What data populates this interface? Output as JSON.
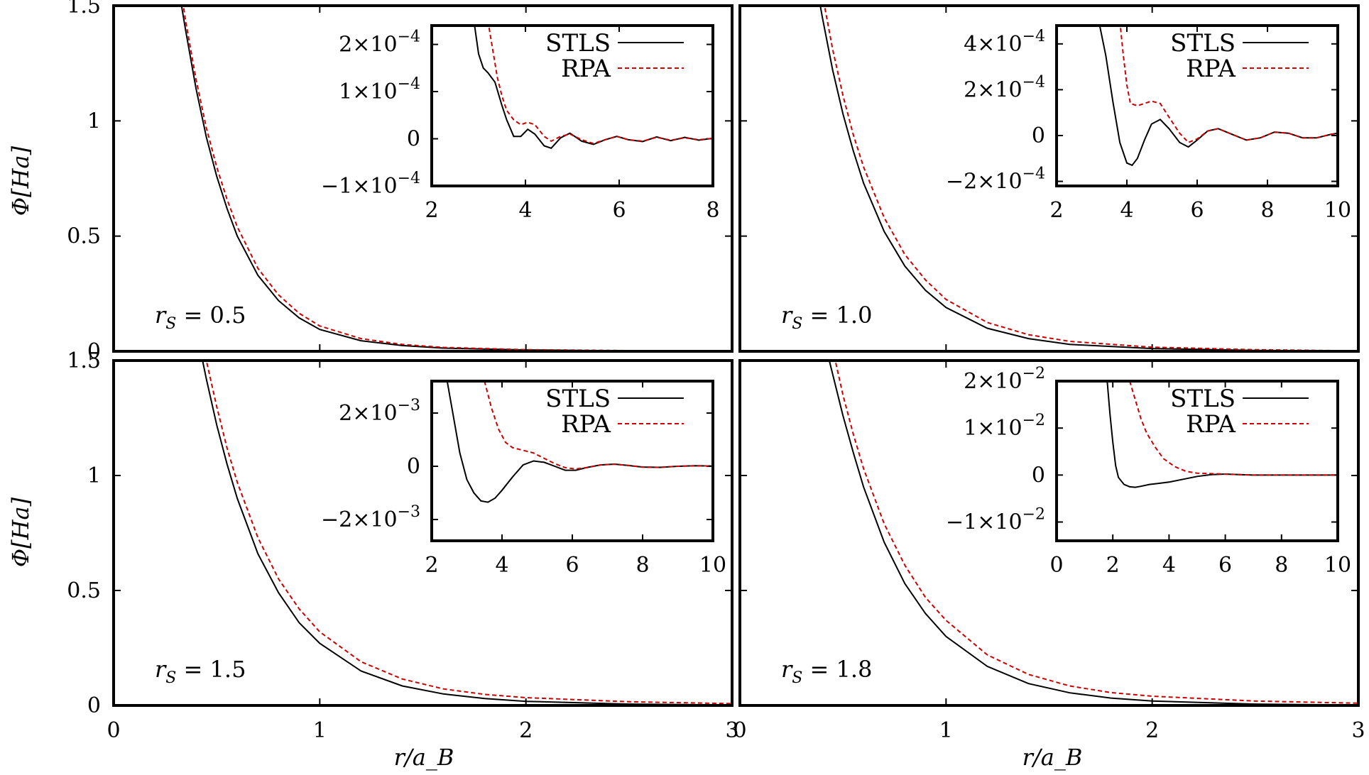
{
  "figure": {
    "ylabel": "Φ[Ha]",
    "xlabel": "r/a_B"
  },
  "chart_data": [
    {
      "type": "line",
      "panel": "top-left",
      "annotation": "r_S = 0.5",
      "xlim": [
        0,
        3
      ],
      "ylim": [
        0,
        1.5
      ],
      "xticks": [
        "0",
        "1",
        "2",
        "3"
      ],
      "yticks": [
        "0",
        "0.5",
        "1",
        "1.5"
      ],
      "show_xticks": false,
      "show_yticks": true,
      "series": [
        {
          "name": "STLS",
          "color": "#000000",
          "dashed": false,
          "x": [
            0.32,
            0.35,
            0.4,
            0.45,
            0.5,
            0.55,
            0.6,
            0.7,
            0.8,
            0.9,
            1.0,
            1.2,
            1.4,
            1.6,
            2.0,
            2.5,
            3.0
          ],
          "y": [
            1.55,
            1.39,
            1.14,
            0.93,
            0.76,
            0.62,
            0.5,
            0.33,
            0.22,
            0.145,
            0.095,
            0.046,
            0.025,
            0.014,
            0.006,
            0.002,
            0.001
          ]
        },
        {
          "name": "RPA",
          "color": "#cc0000",
          "dashed": true,
          "x": [
            0.33,
            0.35,
            0.4,
            0.45,
            0.5,
            0.55,
            0.6,
            0.7,
            0.8,
            0.9,
            1.0,
            1.2,
            1.4,
            1.6,
            2.0,
            2.5,
            3.0
          ],
          "y": [
            1.55,
            1.43,
            1.18,
            0.97,
            0.8,
            0.66,
            0.54,
            0.36,
            0.245,
            0.165,
            0.11,
            0.055,
            0.03,
            0.017,
            0.007,
            0.003,
            0.001
          ]
        }
      ],
      "inset": {
        "xlim": [
          2,
          8
        ],
        "ylim": [
          -0.0001,
          0.00024
        ],
        "xticks": [
          "2",
          "4",
          "6",
          "8"
        ],
        "yticks": [
          {
            "value": -0.0001,
            "mantissa": "−1×10",
            "exp": "−4"
          },
          {
            "value": 0,
            "mantissa": "0",
            "exp": ""
          },
          {
            "value": 0.0001,
            "mantissa": "1×10",
            "exp": "−4"
          },
          {
            "value": 0.0002,
            "mantissa": "2×10",
            "exp": "−4"
          }
        ],
        "series": [
          {
            "name": "STLS",
            "color": "#000000",
            "dashed": false,
            "x": [
              2.9,
              3.0,
              3.1,
              3.2,
              3.35,
              3.5,
              3.6,
              3.75,
              3.9,
              4.05,
              4.2,
              4.4,
              4.55,
              4.75,
              4.95,
              5.2,
              5.45,
              5.7,
              5.95,
              6.2,
              6.5,
              6.8,
              7.1,
              7.4,
              7.7,
              8.0
            ],
            "y": [
              0.00025,
              0.00018,
              0.00015,
              0.00014,
              0.00012,
              7e-05,
              4e-05,
              5e-06,
              5e-06,
              2e-05,
              1e-05,
              -1.5e-05,
              -2e-05,
              2e-06,
              1.2e-05,
              -5e-06,
              -1.2e-05,
              -2e-06,
              5e-06,
              -2e-06,
              -6e-06,
              4e-06,
              -4e-06,
              3e-06,
              -3e-06,
              1e-06
            ]
          },
          {
            "name": "RPA",
            "color": "#cc0000",
            "dashed": true,
            "x": [
              3.2,
              3.3,
              3.4,
              3.5,
              3.6,
              3.75,
              3.9,
              4.05,
              4.2,
              4.4,
              4.55,
              4.75,
              4.95,
              5.2,
              5.45,
              5.7,
              5.95,
              6.2,
              6.5,
              6.8,
              7.1,
              7.4,
              7.7,
              8.0
            ],
            "y": [
              0.00025,
              0.00019,
              0.00013,
              9e-05,
              6e-05,
              4e-05,
              3e-05,
              3.5e-05,
              3e-05,
              5e-06,
              -5e-06,
              5e-06,
              1e-05,
              -2e-06,
              -1e-05,
              -2e-06,
              5e-06,
              -2e-06,
              -5e-06,
              3e-06,
              -3e-06,
              2e-06,
              -2e-06,
              1e-06
            ]
          }
        ]
      }
    },
    {
      "type": "line",
      "panel": "top-right",
      "annotation": "r_S = 1.0",
      "xlim": [
        0,
        3
      ],
      "ylim": [
        0,
        1.5
      ],
      "xticks": [
        "0",
        "1",
        "2",
        "3"
      ],
      "yticks": [
        "0",
        "0.5",
        "1",
        "1.5"
      ],
      "show_xticks": false,
      "show_yticks": false,
      "series": [
        {
          "name": "STLS",
          "color": "#000000",
          "dashed": false,
          "x": [
            0.38,
            0.4,
            0.45,
            0.5,
            0.55,
            0.6,
            0.7,
            0.8,
            0.9,
            1.0,
            1.2,
            1.4,
            1.6,
            2.0,
            2.5,
            3.0
          ],
          "y": [
            1.55,
            1.45,
            1.22,
            1.03,
            0.87,
            0.73,
            0.52,
            0.37,
            0.265,
            0.19,
            0.1,
            0.055,
            0.03,
            0.012,
            0.004,
            0.001
          ]
        },
        {
          "name": "RPA",
          "color": "#cc0000",
          "dashed": true,
          "x": [
            0.4,
            0.45,
            0.5,
            0.55,
            0.6,
            0.7,
            0.8,
            0.9,
            1.0,
            1.2,
            1.4,
            1.6,
            2.0,
            2.5,
            3.0
          ],
          "y": [
            1.55,
            1.31,
            1.11,
            0.94,
            0.8,
            0.58,
            0.42,
            0.31,
            0.225,
            0.125,
            0.072,
            0.043,
            0.018,
            0.007,
            0.002
          ]
        }
      ],
      "inset": {
        "xlim": [
          2,
          10
        ],
        "ylim": [
          -0.00022,
          0.00048
        ],
        "xticks": [
          "2",
          "4",
          "6",
          "8",
          "10"
        ],
        "yticks": [
          {
            "value": -0.0002,
            "mantissa": "−2×10",
            "exp": "−4"
          },
          {
            "value": 0,
            "mantissa": "0",
            "exp": ""
          },
          {
            "value": 0.0002,
            "mantissa": "2×10",
            "exp": "−4"
          },
          {
            "value": 0.0004,
            "mantissa": "4×10",
            "exp": "−4"
          }
        ],
        "series": [
          {
            "name": "STLS",
            "color": "#000000",
            "dashed": false,
            "x": [
              3.2,
              3.4,
              3.6,
              3.8,
              4.0,
              4.15,
              4.3,
              4.5,
              4.7,
              4.95,
              5.2,
              5.5,
              5.75,
              6.0,
              6.3,
              6.6,
              7.0,
              7.4,
              7.8,
              8.2,
              8.6,
              9.0,
              9.4,
              9.8,
              10.0
            ],
            "y": [
              0.0005,
              0.00035,
              0.00015,
              -3e-05,
              -0.00012,
              -0.00013,
              -0.0001,
              -2e-05,
              5e-05,
              7e-05,
              3e-05,
              -3e-05,
              -5e-05,
              -2e-05,
              2e-05,
              3e-05,
              5e-06,
              -2e-05,
              -1e-05,
              1.5e-05,
              1e-05,
              -1e-05,
              -1e-05,
              5e-06,
              1e-05
            ]
          },
          {
            "name": "RPA",
            "color": "#cc0000",
            "dashed": true,
            "x": [
              3.8,
              3.9,
              4.0,
              4.1,
              4.3,
              4.5,
              4.7,
              4.95,
              5.2,
              5.5,
              5.75,
              6.0,
              6.3,
              6.6,
              7.0,
              7.4,
              7.8,
              8.2,
              8.6,
              9.0,
              9.4,
              9.8,
              10.0
            ],
            "y": [
              0.0005,
              0.00035,
              0.00022,
              0.00014,
              0.00013,
              0.00014,
              0.00015,
              0.00014,
              8e-05,
              1e-05,
              -3e-05,
              -1.5e-05,
              2e-05,
              3e-05,
              5e-06,
              -2e-05,
              -1e-05,
              1.5e-05,
              1e-05,
              -1e-05,
              -1e-05,
              5e-06,
              1e-05
            ]
          }
        ]
      }
    },
    {
      "type": "line",
      "panel": "bottom-left",
      "annotation": "r_S = 1.5",
      "xlim": [
        0,
        3
      ],
      "ylim": [
        0,
        1.5
      ],
      "xticks": [
        "0",
        "1",
        "2",
        "3"
      ],
      "yticks": [
        "0",
        "0.5",
        "1",
        "1.5"
      ],
      "show_xticks": true,
      "show_yticks": true,
      "series": [
        {
          "name": "STLS",
          "color": "#000000",
          "dashed": false,
          "x": [
            0.42,
            0.45,
            0.5,
            0.55,
            0.6,
            0.7,
            0.8,
            0.9,
            1.0,
            1.2,
            1.4,
            1.6,
            1.8,
            2.0,
            2.5,
            3.0
          ],
          "y": [
            1.55,
            1.42,
            1.22,
            1.05,
            0.9,
            0.66,
            0.49,
            0.36,
            0.27,
            0.15,
            0.085,
            0.05,
            0.03,
            0.018,
            0.006,
            0.002
          ]
        },
        {
          "name": "RPA",
          "color": "#cc0000",
          "dashed": true,
          "x": [
            0.44,
            0.45,
            0.5,
            0.55,
            0.6,
            0.7,
            0.8,
            0.9,
            1.0,
            1.2,
            1.4,
            1.6,
            1.8,
            2.0,
            2.5,
            3.0
          ],
          "y": [
            1.55,
            1.5,
            1.3,
            1.12,
            0.97,
            0.73,
            0.55,
            0.42,
            0.32,
            0.19,
            0.115,
            0.072,
            0.048,
            0.034,
            0.016,
            0.008
          ]
        }
      ],
      "inset": {
        "xlim": [
          2,
          10
        ],
        "ylim": [
          -0.0028,
          0.0032
        ],
        "xticks": [
          "2",
          "4",
          "6",
          "8",
          "10"
        ],
        "yticks": [
          {
            "value": -0.002,
            "mantissa": "−2×10",
            "exp": "−3"
          },
          {
            "value": 0,
            "mantissa": "0",
            "exp": ""
          },
          {
            "value": 0.002,
            "mantissa": "2×10",
            "exp": "−3"
          }
        ],
        "series": [
          {
            "name": "STLS",
            "color": "#000000",
            "dashed": false,
            "x": [
              2.4,
              2.6,
              2.8,
              3.0,
              3.2,
              3.4,
              3.6,
              3.8,
              4.0,
              4.3,
              4.6,
              4.9,
              5.2,
              5.5,
              5.8,
              6.1,
              6.4,
              6.8,
              7.2,
              7.6,
              8.0,
              8.5,
              9.0,
              9.5,
              10.0
            ],
            "y": [
              0.0035,
              0.002,
              0.0005,
              -0.0005,
              -0.001,
              -0.0013,
              -0.00135,
              -0.0012,
              -0.0009,
              -0.0004,
              5e-05,
              0.0002,
              0.00015,
              0.0,
              -0.00015,
              -0.00015,
              -5e-05,
              5e-05,
              8e-05,
              3e-05,
              -3e-05,
              -4e-05,
              0.0,
              2e-05,
              1e-05
            ]
          },
          {
            "name": "RPA",
            "color": "#cc0000",
            "dashed": true,
            "x": [
              3.5,
              3.7,
              3.9,
              4.1,
              4.3,
              4.6,
              4.9,
              5.2,
              5.5,
              5.8,
              6.1,
              6.4,
              6.8,
              7.2,
              7.6,
              8.0,
              8.5,
              9.0,
              9.5,
              10.0
            ],
            "y": [
              0.0032,
              0.0022,
              0.0014,
              0.0009,
              0.0007,
              0.0006,
              0.0005,
              0.0003,
              0.0001,
              -5e-05,
              -0.0001,
              -5e-05,
              5e-05,
              8e-05,
              3e-05,
              -3e-05,
              -4e-05,
              0.0,
              2e-05,
              1e-05
            ]
          }
        ]
      }
    },
    {
      "type": "line",
      "panel": "bottom-right",
      "annotation": "r_S = 1.8",
      "xlim": [
        0,
        3
      ],
      "ylim": [
        0,
        1.5
      ],
      "xticks": [
        "0",
        "1",
        "2",
        "3"
      ],
      "yticks": [
        "0",
        "0.5",
        "1",
        "1.5"
      ],
      "show_xticks": true,
      "show_yticks": false,
      "series": [
        {
          "name": "STLS",
          "color": "#000000",
          "dashed": false,
          "x": [
            0.42,
            0.45,
            0.5,
            0.55,
            0.6,
            0.7,
            0.8,
            0.9,
            1.0,
            1.2,
            1.4,
            1.6,
            1.8,
            2.0,
            2.5,
            3.0
          ],
          "y": [
            1.55,
            1.44,
            1.26,
            1.1,
            0.95,
            0.71,
            0.53,
            0.4,
            0.3,
            0.17,
            0.095,
            0.055,
            0.032,
            0.019,
            0.006,
            0.002
          ]
        },
        {
          "name": "RPA",
          "color": "#cc0000",
          "dashed": true,
          "x": [
            0.45,
            0.5,
            0.55,
            0.6,
            0.7,
            0.8,
            0.9,
            1.0,
            1.2,
            1.4,
            1.6,
            1.8,
            2.0,
            2.5,
            3.0
          ],
          "y": [
            1.55,
            1.35,
            1.18,
            1.03,
            0.79,
            0.61,
            0.47,
            0.37,
            0.22,
            0.135,
            0.085,
            0.056,
            0.04,
            0.019,
            0.01
          ]
        }
      ],
      "inset": {
        "xlim": [
          0,
          10
        ],
        "ylim": [
          -0.014,
          0.02
        ],
        "xticks": [
          "0",
          "2",
          "4",
          "6",
          "8",
          "10"
        ],
        "yticks": [
          {
            "value": -0.01,
            "mantissa": "−1×10",
            "exp": "−2"
          },
          {
            "value": 0,
            "mantissa": "0",
            "exp": ""
          },
          {
            "value": 0.01,
            "mantissa": "1×10",
            "exp": "−2"
          },
          {
            "value": 0.02,
            "mantissa": "2×10",
            "exp": "−2"
          }
        ],
        "series": [
          {
            "name": "STLS",
            "color": "#000000",
            "dashed": false,
            "x": [
              1.8,
              1.9,
              2.0,
              2.1,
              2.2,
              2.4,
              2.6,
              2.8,
              3.0,
              3.3,
              3.6,
              4.0,
              4.5,
              5.0,
              5.5,
              6.0,
              6.5,
              7.0,
              8.0,
              9.0,
              10.0
            ],
            "y": [
              0.02,
              0.013,
              0.007,
              0.002,
              -0.0005,
              -0.002,
              -0.0025,
              -0.0026,
              -0.0024,
              -0.002,
              -0.0018,
              -0.0015,
              -0.0009,
              -0.0003,
              0.0001,
              0.0002,
              0.0001,
              0.0,
              0.0,
              0.0,
              0.0
            ]
          },
          {
            "name": "RPA",
            "color": "#cc0000",
            "dashed": true,
            "x": [
              2.6,
              2.8,
              3.0,
              3.2,
              3.5,
              3.8,
              4.2,
              4.6,
              5.0,
              5.5,
              6.0,
              6.5,
              7.0,
              8.0,
              9.0,
              10.0
            ],
            "y": [
              0.02,
              0.016,
              0.012,
              0.009,
              0.006,
              0.0035,
              0.0018,
              0.0008,
              0.0004,
              0.0003,
              0.0002,
              0.0001,
              0.0,
              0.0,
              0.0,
              0.0
            ]
          }
        ]
      }
    }
  ]
}
